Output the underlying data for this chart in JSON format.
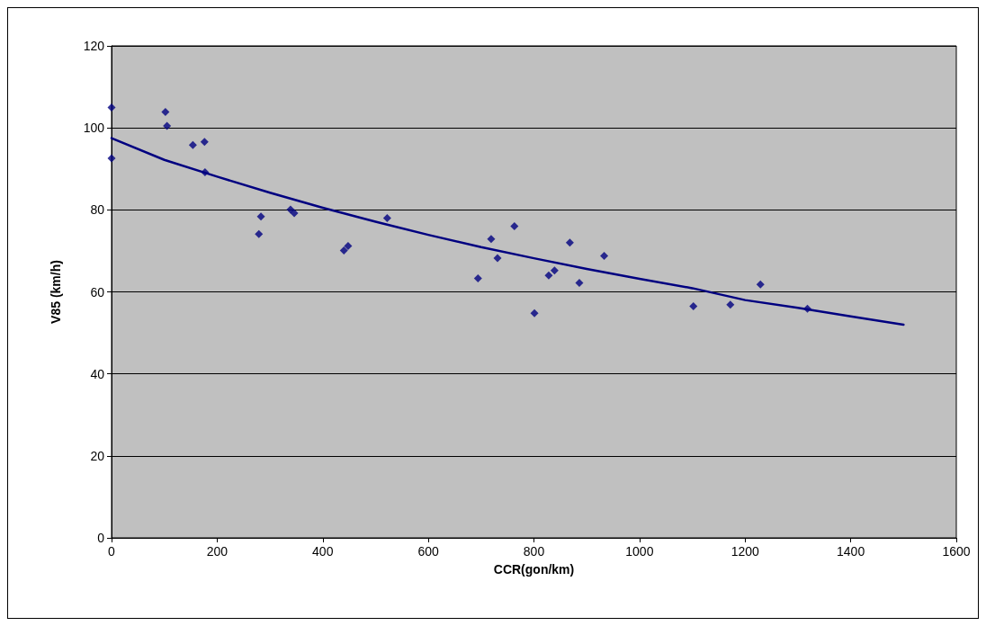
{
  "chart_data": {
    "type": "scatter",
    "xlabel": "CCR(gon/km)",
    "ylabel": "V85 (km/h)",
    "xlim": [
      0,
      1600
    ],
    "xticks": [
      0,
      200,
      400,
      600,
      800,
      1000,
      1200,
      1400,
      1600
    ],
    "ylim": [
      0,
      120
    ],
    "yticks": [
      0,
      20,
      40,
      60,
      80,
      100,
      120
    ],
    "grid": "y",
    "marker": "diamond",
    "series": [
      {
        "color": "#000080",
        "x": [
          0,
          0,
          102,
          105,
          154,
          176,
          177,
          283,
          279,
          339,
          346,
          440,
          448,
          522,
          694,
          719,
          731,
          763,
          801,
          828,
          839,
          868,
          886,
          933,
          1102,
          1172,
          1229,
          1318
        ],
        "values": [
          105,
          92.6,
          103.9,
          100.5,
          95.8,
          96.6,
          89.2,
          78.4,
          74.1,
          80.1,
          79.2,
          70.1,
          71.2,
          78,
          63.3,
          72.9,
          68.2,
          76,
          54.8,
          64,
          65.2,
          72,
          62.2,
          68.8,
          56.5,
          56.9,
          61.8,
          55.9
        ]
      },
      {
        "type": "line",
        "color": "#000080",
        "marker": "none",
        "line_style": "solid",
        "x": [
          0,
          100,
          200,
          300,
          400,
          500,
          600,
          700,
          800,
          900,
          1000,
          1100,
          1200,
          1300,
          1400,
          1500
        ],
        "values": [
          97.5,
          92.2,
          88.1,
          84.2,
          80.5,
          77.1,
          73.9,
          70.9,
          68.2,
          65.6,
          63.2,
          60.9,
          58.0,
          56.1,
          54.0,
          52.0
        ]
      }
    ]
  }
}
